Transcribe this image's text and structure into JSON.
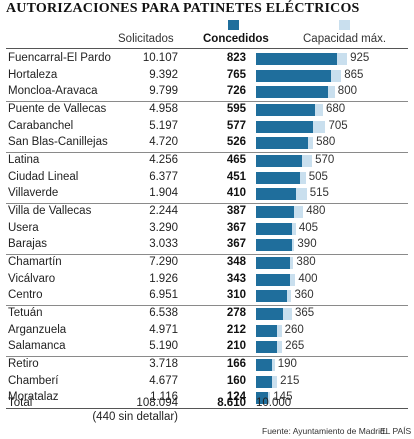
{
  "title": "AUTORIZACIONES PARA PATINETES ELÉCTRICOS",
  "columns": {
    "requested": "Solicitados",
    "granted": "Concedidos",
    "capacity": "Capacidad máx."
  },
  "colors": {
    "granted": "#1f6e9c",
    "capacity": "#c9dfee"
  },
  "chart_data": {
    "type": "bar",
    "orientation": "horizontal",
    "title": "AUTORIZACIONES PARA PATINETES ELÉCTRICOS",
    "xlim": [
      0,
      1000
    ],
    "categories": [
      "Fuencarral-El Pardo",
      "Hortaleza",
      "Moncloa-Aravaca",
      "Puente de Vallecas",
      "Carabanchel",
      "San Blas-Canillejas",
      "Latina",
      "Ciudad Lineal",
      "Villaverde",
      "Villa de Vallecas",
      "Usera",
      "Barajas",
      "Chamartín",
      "Vicálvaro",
      "Centro",
      "Tetuán",
      "Arganzuela",
      "Salamanca",
      "Retiro",
      "Chamberí",
      "Moratalaz"
    ],
    "requested_labels": [
      "10.107",
      "9.392",
      "9.799",
      "4.958",
      "5.197",
      "4.720",
      "4.256",
      "6.377",
      "1.904",
      "2.244",
      "3.290",
      "3.033",
      "7.290",
      "1.926",
      "6.951",
      "6.538",
      "4.971",
      "5.190",
      "3.718",
      "4.677",
      "1.116"
    ],
    "series": [
      {
        "name": "Concedidos",
        "values": [
          823,
          765,
          726,
          595,
          577,
          526,
          465,
          451,
          410,
          387,
          367,
          367,
          348,
          343,
          310,
          278,
          212,
          210,
          166,
          160,
          124
        ]
      },
      {
        "name": "Capacidad máx.",
        "values": [
          925,
          865,
          800,
          680,
          705,
          580,
          570,
          505,
          515,
          480,
          405,
          390,
          380,
          400,
          360,
          365,
          260,
          265,
          190,
          215,
          145
        ]
      }
    ],
    "groups": [
      [
        0,
        1,
        2
      ],
      [
        3,
        4,
        5
      ],
      [
        6,
        7,
        8
      ],
      [
        9,
        10,
        11
      ],
      [
        12,
        13,
        14
      ],
      [
        15,
        16,
        17
      ],
      [
        18,
        19,
        20
      ]
    ]
  },
  "total": {
    "label": "Total",
    "requested": "108.094",
    "requested_note": "(440 sin detallar)",
    "granted": "8.610",
    "capacity": "10.000"
  },
  "source": "Fuente: Ayuntamiento de Madrid.",
  "credit": "EL PAÍS"
}
